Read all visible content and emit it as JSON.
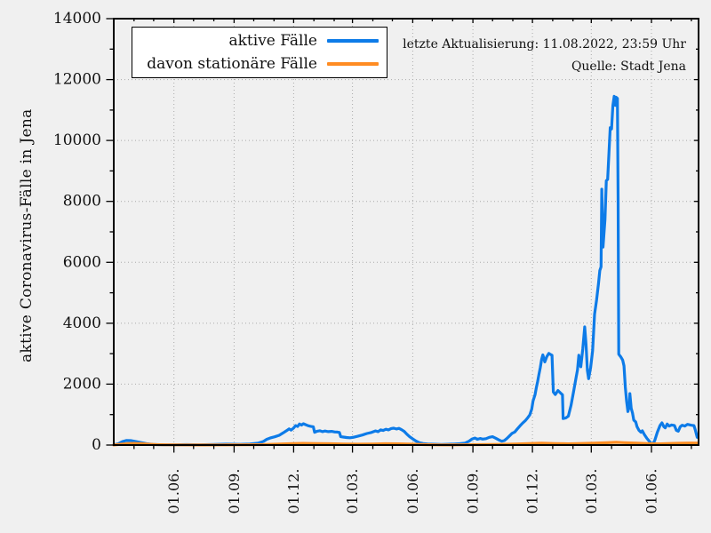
{
  "chart_data": {
    "type": "line",
    "title": "",
    "ylabel": "aktive Coronavirus-Fälle in Jena",
    "annotations": {
      "line1": "letzte Aktualisierung: 11.08.2022, 23:59 Uhr",
      "line2": "Quelle: Stadt Jena"
    },
    "legend_position": "top-left-inside",
    "grid": "dotted-major",
    "x_axis": {
      "domain": [
        "2020-03-01",
        "2022-08-12"
      ],
      "minor_tick_interval": "month",
      "major_ticks": [
        {
          "date": "2020-06-01",
          "label": "01.06."
        },
        {
          "date": "2020-09-01",
          "label": "01.09."
        },
        {
          "date": "2020-12-01",
          "label": "01.12."
        },
        {
          "date": "2021-03-01",
          "label": "01.03."
        },
        {
          "date": "2021-06-01",
          "label": "01.06."
        },
        {
          "date": "2021-09-01",
          "label": "01.09."
        },
        {
          "date": "2021-12-01",
          "label": "01.12."
        },
        {
          "date": "2022-03-01",
          "label": "01.03."
        },
        {
          "date": "2022-06-01",
          "label": "01.06."
        }
      ]
    },
    "y_axis": {
      "min": 0,
      "max": 14000,
      "major_step": 2000,
      "minor_step": 1000
    },
    "colors": {
      "background": "#f0f0f0",
      "spine": "#000000",
      "grid": "#aaaaaa",
      "text": "#111111",
      "series1": "#0d7be8",
      "series2": "#ff8c22"
    },
    "series": [
      {
        "name": "aktive Fälle",
        "color": "#0d7be8",
        "points": [
          [
            "2020-03-01",
            5
          ],
          [
            "2020-03-08",
            45
          ],
          [
            "2020-03-14",
            110
          ],
          [
            "2020-03-20",
            150
          ],
          [
            "2020-03-27",
            145
          ],
          [
            "2020-04-03",
            120
          ],
          [
            "2020-04-10",
            90
          ],
          [
            "2020-04-20",
            45
          ],
          [
            "2020-04-30",
            18
          ],
          [
            "2020-05-15",
            10
          ],
          [
            "2020-06-01",
            8
          ],
          [
            "2020-06-20",
            14
          ],
          [
            "2020-07-10",
            10
          ],
          [
            "2020-08-01",
            20
          ],
          [
            "2020-08-20",
            28
          ],
          [
            "2020-09-10",
            24
          ],
          [
            "2020-09-25",
            35
          ],
          [
            "2020-10-08",
            65
          ],
          [
            "2020-10-16",
            120
          ],
          [
            "2020-10-21",
            190
          ],
          [
            "2020-10-26",
            230
          ],
          [
            "2020-11-02",
            270
          ],
          [
            "2020-11-09",
            320
          ],
          [
            "2020-11-15",
            400
          ],
          [
            "2020-11-20",
            470
          ],
          [
            "2020-11-24",
            530
          ],
          [
            "2020-11-27",
            490
          ],
          [
            "2020-12-01",
            560
          ],
          [
            "2020-12-04",
            640
          ],
          [
            "2020-12-07",
            610
          ],
          [
            "2020-12-10",
            690
          ],
          [
            "2020-12-13",
            655
          ],
          [
            "2020-12-16",
            700
          ],
          [
            "2020-12-19",
            670
          ],
          [
            "2020-12-23",
            635
          ],
          [
            "2020-12-27",
            615
          ],
          [
            "2020-12-31",
            600
          ],
          [
            "2021-01-02",
            420
          ],
          [
            "2021-01-06",
            455
          ],
          [
            "2021-01-10",
            470
          ],
          [
            "2021-01-14",
            440
          ],
          [
            "2021-01-18",
            460
          ],
          [
            "2021-01-23",
            440
          ],
          [
            "2021-01-28",
            450
          ],
          [
            "2021-02-02",
            430
          ],
          [
            "2021-02-06",
            425
          ],
          [
            "2021-02-09",
            415
          ],
          [
            "2021-02-11",
            275
          ],
          [
            "2021-02-15",
            262
          ],
          [
            "2021-02-20",
            248
          ],
          [
            "2021-02-25",
            238
          ],
          [
            "2021-03-02",
            255
          ],
          [
            "2021-03-09",
            290
          ],
          [
            "2021-03-16",
            330
          ],
          [
            "2021-03-23",
            380
          ],
          [
            "2021-03-30",
            415
          ],
          [
            "2021-04-05",
            465
          ],
          [
            "2021-04-09",
            440
          ],
          [
            "2021-04-13",
            500
          ],
          [
            "2021-04-17",
            478
          ],
          [
            "2021-04-21",
            520
          ],
          [
            "2021-04-25",
            498
          ],
          [
            "2021-04-29",
            542
          ],
          [
            "2021-05-03",
            555
          ],
          [
            "2021-05-07",
            528
          ],
          [
            "2021-05-11",
            548
          ],
          [
            "2021-05-15",
            505
          ],
          [
            "2021-05-19",
            450
          ],
          [
            "2021-05-23",
            360
          ],
          [
            "2021-05-27",
            280
          ],
          [
            "2021-06-01",
            200
          ],
          [
            "2021-06-06",
            130
          ],
          [
            "2021-06-11",
            80
          ],
          [
            "2021-06-17",
            50
          ],
          [
            "2021-06-24",
            35
          ],
          [
            "2021-07-05",
            25
          ],
          [
            "2021-07-15",
            20
          ],
          [
            "2021-07-25",
            25
          ],
          [
            "2021-08-04",
            35
          ],
          [
            "2021-08-12",
            45
          ],
          [
            "2021-08-20",
            65
          ],
          [
            "2021-08-26",
            125
          ],
          [
            "2021-08-31",
            200
          ],
          [
            "2021-09-04",
            230
          ],
          [
            "2021-09-08",
            190
          ],
          [
            "2021-09-12",
            215
          ],
          [
            "2021-09-16",
            195
          ],
          [
            "2021-09-21",
            210
          ],
          [
            "2021-09-26",
            255
          ],
          [
            "2021-10-01",
            275
          ],
          [
            "2021-10-06",
            225
          ],
          [
            "2021-10-11",
            165
          ],
          [
            "2021-10-15",
            125
          ],
          [
            "2021-10-19",
            145
          ],
          [
            "2021-10-23",
            215
          ],
          [
            "2021-10-27",
            300
          ],
          [
            "2021-10-31",
            385
          ],
          [
            "2021-11-04",
            430
          ],
          [
            "2021-11-08",
            530
          ],
          [
            "2021-11-12",
            630
          ],
          [
            "2021-11-16",
            720
          ],
          [
            "2021-11-20",
            800
          ],
          [
            "2021-11-24",
            900
          ],
          [
            "2021-11-27",
            990
          ],
          [
            "2021-11-30",
            1180
          ],
          [
            "2021-12-02",
            1450
          ],
          [
            "2021-12-05",
            1650
          ],
          [
            "2021-12-07",
            1890
          ],
          [
            "2021-12-09",
            2080
          ],
          [
            "2021-12-11",
            2320
          ],
          [
            "2021-12-13",
            2540
          ],
          [
            "2021-12-15",
            2810
          ],
          [
            "2021-12-17",
            2960
          ],
          [
            "2021-12-20",
            2730
          ],
          [
            "2021-12-23",
            2900
          ],
          [
            "2021-12-26",
            3010
          ],
          [
            "2021-12-29",
            2970
          ],
          [
            "2021-12-31",
            2950
          ],
          [
            "2022-01-02",
            1740
          ],
          [
            "2022-01-05",
            1660
          ],
          [
            "2022-01-09",
            1790
          ],
          [
            "2022-01-13",
            1710
          ],
          [
            "2022-01-16",
            1650
          ],
          [
            "2022-01-17",
            870
          ],
          [
            "2022-01-21",
            890
          ],
          [
            "2022-01-25",
            950
          ],
          [
            "2022-01-29",
            1300
          ],
          [
            "2022-02-02",
            1760
          ],
          [
            "2022-02-06",
            2250
          ],
          [
            "2022-02-08",
            2470
          ],
          [
            "2022-02-10",
            2950
          ],
          [
            "2022-02-13",
            2570
          ],
          [
            "2022-02-16",
            3150
          ],
          [
            "2022-02-19",
            3880
          ],
          [
            "2022-02-21",
            3300
          ],
          [
            "2022-02-23",
            2450
          ],
          [
            "2022-02-25",
            2180
          ],
          [
            "2022-02-28",
            2550
          ],
          [
            "2022-03-03",
            3100
          ],
          [
            "2022-03-06",
            4300
          ],
          [
            "2022-03-09",
            4750
          ],
          [
            "2022-03-12",
            5300
          ],
          [
            "2022-03-14",
            5730
          ],
          [
            "2022-03-16",
            5850
          ],
          [
            "2022-03-17",
            8400
          ],
          [
            "2022-03-19",
            6500
          ],
          [
            "2022-03-22",
            7400
          ],
          [
            "2022-03-24",
            8680
          ],
          [
            "2022-03-26",
            8720
          ],
          [
            "2022-03-28",
            9600
          ],
          [
            "2022-03-30",
            10420
          ],
          [
            "2022-04-01",
            10380
          ],
          [
            "2022-04-03",
            11150
          ],
          [
            "2022-04-05",
            11450
          ],
          [
            "2022-04-07",
            11150
          ],
          [
            "2022-04-08",
            11420
          ],
          [
            "2022-04-10",
            11380
          ],
          [
            "2022-04-11",
            8000
          ],
          [
            "2022-04-12",
            2980
          ],
          [
            "2022-04-15",
            2900
          ],
          [
            "2022-04-18",
            2790
          ],
          [
            "2022-04-20",
            2600
          ],
          [
            "2022-04-22",
            1900
          ],
          [
            "2022-04-24",
            1450
          ],
          [
            "2022-04-26",
            1100
          ],
          [
            "2022-04-28",
            1260
          ],
          [
            "2022-04-29",
            1690
          ],
          [
            "2022-05-01",
            1210
          ],
          [
            "2022-05-03",
            1050
          ],
          [
            "2022-05-05",
            820
          ],
          [
            "2022-05-08",
            760
          ],
          [
            "2022-05-10",
            600
          ],
          [
            "2022-05-13",
            480
          ],
          [
            "2022-05-16",
            420
          ],
          [
            "2022-05-18",
            470
          ],
          [
            "2022-05-21",
            350
          ],
          [
            "2022-05-25",
            220
          ],
          [
            "2022-05-29",
            120
          ],
          [
            "2022-06-01",
            45
          ],
          [
            "2022-06-03",
            30
          ],
          [
            "2022-06-06",
            150
          ],
          [
            "2022-06-10",
            420
          ],
          [
            "2022-06-14",
            640
          ],
          [
            "2022-06-17",
            730
          ],
          [
            "2022-06-20",
            600
          ],
          [
            "2022-06-22",
            565
          ],
          [
            "2022-06-25",
            690
          ],
          [
            "2022-06-28",
            625
          ],
          [
            "2022-07-02",
            660
          ],
          [
            "2022-07-06",
            645
          ],
          [
            "2022-07-09",
            485
          ],
          [
            "2022-07-12",
            455
          ],
          [
            "2022-07-15",
            600
          ],
          [
            "2022-07-18",
            650
          ],
          [
            "2022-07-22",
            625
          ],
          [
            "2022-07-26",
            680
          ],
          [
            "2022-07-29",
            665
          ],
          [
            "2022-08-01",
            650
          ],
          [
            "2022-08-05",
            640
          ],
          [
            "2022-08-07",
            500
          ],
          [
            "2022-08-09",
            330
          ],
          [
            "2022-08-10",
            255
          ],
          [
            "2022-08-11",
            285
          ]
        ]
      },
      {
        "name": "davon stationäre Fälle",
        "color": "#ff8c22",
        "points": [
          [
            "2020-03-01",
            3
          ],
          [
            "2020-03-12",
            25
          ],
          [
            "2020-03-22",
            50
          ],
          [
            "2020-04-01",
            55
          ],
          [
            "2020-04-12",
            48
          ],
          [
            "2020-04-22",
            30
          ],
          [
            "2020-05-05",
            15
          ],
          [
            "2020-05-20",
            8
          ],
          [
            "2020-06-15",
            5
          ],
          [
            "2020-07-15",
            4
          ],
          [
            "2020-08-15",
            6
          ],
          [
            "2020-09-15",
            8
          ],
          [
            "2020-10-15",
            15
          ],
          [
            "2020-11-05",
            30
          ],
          [
            "2020-11-25",
            45
          ],
          [
            "2020-12-15",
            55
          ],
          [
            "2021-01-05",
            50
          ],
          [
            "2021-01-25",
            45
          ],
          [
            "2021-02-15",
            35
          ],
          [
            "2021-03-10",
            28
          ],
          [
            "2021-04-01",
            35
          ],
          [
            "2021-04-20",
            45
          ],
          [
            "2021-05-10",
            42
          ],
          [
            "2021-05-30",
            30
          ],
          [
            "2021-06-20",
            14
          ],
          [
            "2021-07-15",
            7
          ],
          [
            "2021-08-15",
            8
          ],
          [
            "2021-09-15",
            14
          ],
          [
            "2021-10-15",
            22
          ],
          [
            "2021-11-05",
            35
          ],
          [
            "2021-11-25",
            50
          ],
          [
            "2021-12-15",
            60
          ],
          [
            "2022-01-05",
            50
          ],
          [
            "2022-01-25",
            42
          ],
          [
            "2022-02-15",
            52
          ],
          [
            "2022-03-05",
            60
          ],
          [
            "2022-03-25",
            75
          ],
          [
            "2022-04-08",
            90
          ],
          [
            "2022-04-20",
            80
          ],
          [
            "2022-05-10",
            60
          ],
          [
            "2022-05-30",
            45
          ],
          [
            "2022-06-15",
            42
          ],
          [
            "2022-07-05",
            55
          ],
          [
            "2022-07-20",
            62
          ],
          [
            "2022-08-01",
            68
          ],
          [
            "2022-08-11",
            62
          ]
        ]
      }
    ]
  }
}
